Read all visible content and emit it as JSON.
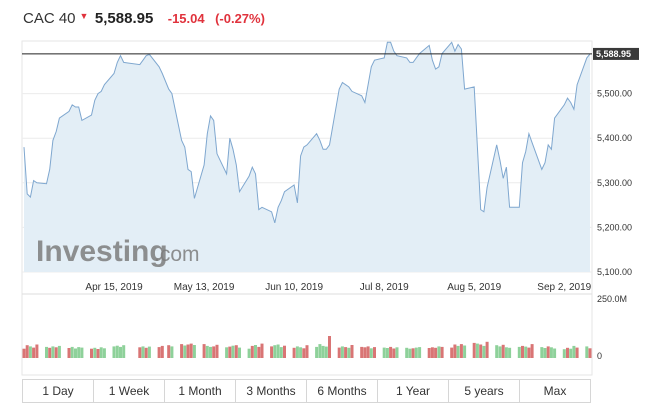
{
  "header": {
    "index_name": "CAC 40",
    "price": "5,588.95",
    "change": "-15.04",
    "change_pct": "(-0.27%)"
  },
  "watermark": {
    "brand": "Investing",
    "suffix": ".com"
  },
  "range_buttons": [
    "1 Day",
    "1 Week",
    "1 Month",
    "3 Months",
    "6 Months",
    "1 Year",
    "5 years",
    "Max"
  ],
  "colors": {
    "line": "#7fa7cf",
    "area": "#e3eef6",
    "up_volume": "#8ed19a",
    "down_volume": "#d97575",
    "negative": "#e0323c",
    "price_tag": "#3a3a3a"
  },
  "chart_data": {
    "type": "area",
    "price_axis": {
      "ticks": [
        "5,100.00",
        "5,200.00",
        "5,300.00",
        "5,400.00",
        "5,500.00"
      ],
      "tick_values": [
        5100,
        5200,
        5300,
        5400,
        5500
      ],
      "range": [
        5100,
        5600
      ],
      "last_price_label": "5,588.95",
      "last_price": 5588.95
    },
    "x_axis": {
      "ticks": [
        "Apr 15, 2019",
        "May 13, 2019",
        "Jun 10, 2019",
        "Jul 8, 2019",
        "Aug 5, 2019",
        "Sep 2, 2019"
      ],
      "tick_dates": [
        "2019-04-15",
        "2019-05-13",
        "2019-06-10",
        "2019-07-08",
        "2019-08-05",
        "2019-09-02"
      ],
      "range": [
        "2019-03-18",
        "2019-09-10"
      ]
    },
    "series": [
      {
        "points": [
          [
            "2019-03-18",
            5380
          ],
          [
            "2019-03-19",
            5275
          ],
          [
            "2019-03-20",
            5268
          ],
          [
            "2019-03-21",
            5305
          ],
          [
            "2019-03-22",
            5300
          ],
          [
            "2019-03-25",
            5298
          ],
          [
            "2019-03-26",
            5330
          ],
          [
            "2019-03-27",
            5395
          ],
          [
            "2019-03-28",
            5415
          ],
          [
            "2019-03-29",
            5445
          ],
          [
            "2019-04-01",
            5460
          ],
          [
            "2019-04-02",
            5475
          ],
          [
            "2019-04-03",
            5470
          ],
          [
            "2019-04-04",
            5470
          ],
          [
            "2019-04-05",
            5440
          ],
          [
            "2019-04-08",
            5452
          ],
          [
            "2019-04-09",
            5485
          ],
          [
            "2019-04-10",
            5500
          ],
          [
            "2019-04-11",
            5505
          ],
          [
            "2019-04-12",
            5520
          ],
          [
            "2019-04-15",
            5545
          ],
          [
            "2019-04-16",
            5570
          ],
          [
            "2019-04-17",
            5585
          ],
          [
            "2019-04-18",
            5570
          ],
          [
            "2019-04-23",
            5565
          ],
          [
            "2019-04-24",
            5575
          ],
          [
            "2019-04-25",
            5585
          ],
          [
            "2019-04-26",
            5588
          ],
          [
            "2019-04-29",
            5560
          ],
          [
            "2019-04-30",
            5545
          ],
          [
            "2019-05-02",
            5510
          ],
          [
            "2019-05-03",
            5500
          ],
          [
            "2019-05-06",
            5395
          ],
          [
            "2019-05-07",
            5380
          ],
          [
            "2019-05-08",
            5330
          ],
          [
            "2019-05-09",
            5325
          ],
          [
            "2019-05-10",
            5265
          ],
          [
            "2019-05-13",
            5340
          ],
          [
            "2019-05-14",
            5410
          ],
          [
            "2019-05-15",
            5450
          ],
          [
            "2019-05-16",
            5440
          ],
          [
            "2019-05-17",
            5365
          ],
          [
            "2019-05-20",
            5320
          ],
          [
            "2019-05-21",
            5400
          ],
          [
            "2019-05-22",
            5375
          ],
          [
            "2019-05-23",
            5340
          ],
          [
            "2019-05-24",
            5280
          ],
          [
            "2019-05-27",
            5315
          ],
          [
            "2019-05-28",
            5335
          ],
          [
            "2019-05-29",
            5320
          ],
          [
            "2019-05-30",
            5240
          ],
          [
            "2019-05-31",
            5245
          ],
          [
            "2019-06-03",
            5235
          ],
          [
            "2019-06-04",
            5210
          ],
          [
            "2019-06-05",
            5245
          ],
          [
            "2019-06-06",
            5260
          ],
          [
            "2019-06-07",
            5280
          ],
          [
            "2019-06-10",
            5295
          ],
          [
            "2019-06-11",
            5255
          ],
          [
            "2019-06-12",
            5360
          ],
          [
            "2019-06-13",
            5380
          ],
          [
            "2019-06-14",
            5385
          ],
          [
            "2019-06-17",
            5410
          ],
          [
            "2019-06-18",
            5395
          ],
          [
            "2019-06-19",
            5375
          ],
          [
            "2019-06-20",
            5375
          ],
          [
            "2019-06-21",
            5385
          ],
          [
            "2019-06-24",
            5510
          ],
          [
            "2019-06-25",
            5525
          ],
          [
            "2019-06-26",
            5520
          ],
          [
            "2019-06-27",
            5515
          ],
          [
            "2019-06-28",
            5505
          ],
          [
            "2019-07-01",
            5495
          ],
          [
            "2019-07-02",
            5480
          ],
          [
            "2019-07-03",
            5520
          ],
          [
            "2019-07-04",
            5560
          ],
          [
            "2019-07-05",
            5575
          ],
          [
            "2019-07-08",
            5580
          ],
          [
            "2019-07-09",
            5615
          ],
          [
            "2019-07-10",
            5615
          ],
          [
            "2019-07-11",
            5595
          ],
          [
            "2019-07-12",
            5585
          ],
          [
            "2019-07-15",
            5580
          ],
          [
            "2019-07-16",
            5570
          ],
          [
            "2019-07-17",
            5570
          ],
          [
            "2019-07-18",
            5580
          ],
          [
            "2019-07-19",
            5590
          ],
          [
            "2019-07-22",
            5608
          ],
          [
            "2019-07-23",
            5575
          ],
          [
            "2019-07-24",
            5555
          ],
          [
            "2019-07-25",
            5560
          ],
          [
            "2019-07-26",
            5590
          ],
          [
            "2019-07-29",
            5615
          ],
          [
            "2019-07-30",
            5595
          ],
          [
            "2019-07-31",
            5610
          ],
          [
            "2019-08-01",
            5600
          ],
          [
            "2019-08-02",
            5510
          ],
          [
            "2019-08-05",
            5515
          ],
          [
            "2019-08-06",
            5380
          ],
          [
            "2019-08-07",
            5240
          ],
          [
            "2019-08-08",
            5235
          ],
          [
            "2019-08-09",
            5290
          ],
          [
            "2019-08-12",
            5385
          ],
          [
            "2019-08-13",
            5350
          ],
          [
            "2019-08-14",
            5310
          ],
          [
            "2019-08-15",
            5335
          ],
          [
            "2019-08-16",
            5245
          ],
          [
            "2019-08-19",
            5245
          ],
          [
            "2019-08-20",
            5345
          ],
          [
            "2019-08-21",
            5370
          ],
          [
            "2019-08-22",
            5410
          ],
          [
            "2019-08-23",
            5390
          ],
          [
            "2019-08-26",
            5330
          ],
          [
            "2019-08-27",
            5345
          ],
          [
            "2019-08-28",
            5385
          ],
          [
            "2019-08-29",
            5375
          ],
          [
            "2019-08-30",
            5445
          ],
          [
            "2019-09-02",
            5475
          ],
          [
            "2019-09-03",
            5490
          ],
          [
            "2019-09-04",
            5480
          ],
          [
            "2019-09-05",
            5465
          ],
          [
            "2019-09-06",
            5520
          ],
          [
            "2019-09-09",
            5580
          ],
          [
            "2019-09-10",
            5589
          ]
        ]
      }
    ],
    "volume": {
      "max_label": "250.0M",
      "zero_label": "0",
      "max": 250,
      "unit": "M",
      "bars": [
        [
          "2019-03-18",
          40,
          "down"
        ],
        [
          "2019-03-19",
          55,
          "down"
        ],
        [
          "2019-03-20",
          50,
          "up"
        ],
        [
          "2019-03-21",
          45,
          "down"
        ],
        [
          "2019-03-22",
          58,
          "down"
        ],
        [
          "2019-03-25",
          48,
          "up"
        ],
        [
          "2019-03-26",
          44,
          "down"
        ],
        [
          "2019-03-27",
          50,
          "up"
        ],
        [
          "2019-03-28",
          46,
          "down"
        ],
        [
          "2019-03-29",
          52,
          "up"
        ],
        [
          "2019-04-01",
          43,
          "down"
        ],
        [
          "2019-04-02",
          48,
          "up"
        ],
        [
          "2019-04-03",
          41,
          "up"
        ],
        [
          "2019-04-04",
          47,
          "up"
        ],
        [
          "2019-04-05",
          45,
          "up"
        ],
        [
          "2019-04-08",
          40,
          "down"
        ],
        [
          "2019-04-09",
          44,
          "up"
        ],
        [
          "2019-04-10",
          39,
          "down"
        ],
        [
          "2019-04-11",
          46,
          "up"
        ],
        [
          "2019-04-12",
          42,
          "up"
        ],
        [
          "2019-04-15",
          50,
          "up"
        ],
        [
          "2019-04-16",
          53,
          "up"
        ],
        [
          "2019-04-17",
          48,
          "up"
        ],
        [
          "2019-04-18",
          55,
          "up"
        ],
        [
          "2019-04-23",
          46,
          "down"
        ],
        [
          "2019-04-24",
          50,
          "up"
        ],
        [
          "2019-04-25",
          44,
          "down"
        ],
        [
          "2019-04-26",
          49,
          "up"
        ],
        [
          "2019-04-29",
          47,
          "down"
        ],
        [
          "2019-04-30",
          52,
          "down"
        ],
        [
          "2019-05-02",
          55,
          "down"
        ],
        [
          "2019-05-03",
          50,
          "up"
        ],
        [
          "2019-05-06",
          60,
          "down"
        ],
        [
          "2019-05-07",
          54,
          "up"
        ],
        [
          "2019-05-08",
          58,
          "down"
        ],
        [
          "2019-05-09",
          62,
          "down"
        ],
        [
          "2019-05-10",
          56,
          "up"
        ],
        [
          "2019-05-13",
          60,
          "down"
        ],
        [
          "2019-05-14",
          52,
          "up"
        ],
        [
          "2019-05-15",
          48,
          "up"
        ],
        [
          "2019-05-16",
          50,
          "down"
        ],
        [
          "2019-05-17",
          57,
          "down"
        ],
        [
          "2019-05-20",
          46,
          "up"
        ],
        [
          "2019-05-21",
          49,
          "down"
        ],
        [
          "2019-05-22",
          53,
          "up"
        ],
        [
          "2019-05-23",
          55,
          "down"
        ],
        [
          "2019-05-24",
          45,
          "up"
        ],
        [
          "2019-05-27",
          40,
          "up"
        ],
        [
          "2019-05-28",
          52,
          "down"
        ],
        [
          "2019-05-29",
          56,
          "up"
        ],
        [
          "2019-05-30",
          48,
          "down"
        ],
        [
          "2019-05-31",
          62,
          "down"
        ],
        [
          "2019-06-03",
          50,
          "down"
        ],
        [
          "2019-06-04",
          55,
          "up"
        ],
        [
          "2019-06-05",
          58,
          "up"
        ],
        [
          "2019-06-06",
          47,
          "up"
        ],
        [
          "2019-06-07",
          53,
          "down"
        ],
        [
          "2019-06-10",
          44,
          "down"
        ],
        [
          "2019-06-11",
          50,
          "up"
        ],
        [
          "2019-06-12",
          46,
          "up"
        ],
        [
          "2019-06-13",
          42,
          "down"
        ],
        [
          "2019-06-14",
          55,
          "down"
        ],
        [
          "2019-06-17",
          48,
          "up"
        ],
        [
          "2019-06-18",
          60,
          "up"
        ],
        [
          "2019-06-19",
          52,
          "up"
        ],
        [
          "2019-06-20",
          49,
          "up"
        ],
        [
          "2019-06-21",
          95,
          "down"
        ],
        [
          "2019-06-24",
          45,
          "down"
        ],
        [
          "2019-06-25",
          50,
          "up"
        ],
        [
          "2019-06-26",
          47,
          "down"
        ],
        [
          "2019-06-27",
          44,
          "up"
        ],
        [
          "2019-06-28",
          56,
          "down"
        ],
        [
          "2019-07-01",
          48,
          "down"
        ],
        [
          "2019-07-02",
          46,
          "down"
        ],
        [
          "2019-07-03",
          50,
          "down"
        ],
        [
          "2019-07-04",
          42,
          "up"
        ],
        [
          "2019-07-05",
          47,
          "down"
        ],
        [
          "2019-07-08",
          45,
          "up"
        ],
        [
          "2019-07-09",
          43,
          "up"
        ],
        [
          "2019-07-10",
          48,
          "down"
        ],
        [
          "2019-07-11",
          41,
          "down"
        ],
        [
          "2019-07-12",
          46,
          "up"
        ],
        [
          "2019-07-15",
          44,
          "up"
        ],
        [
          "2019-07-16",
          40,
          "up"
        ],
        [
          "2019-07-17",
          42,
          "down"
        ],
        [
          "2019-07-18",
          45,
          "up"
        ],
        [
          "2019-07-19",
          47,
          "up"
        ],
        [
          "2019-07-22",
          43,
          "down"
        ],
        [
          "2019-07-23",
          46,
          "down"
        ],
        [
          "2019-07-24",
          44,
          "down"
        ],
        [
          "2019-07-25",
          50,
          "up"
        ],
        [
          "2019-07-26",
          48,
          "down"
        ],
        [
          "2019-07-29",
          45,
          "down"
        ],
        [
          "2019-07-30",
          58,
          "down"
        ],
        [
          "2019-07-31",
          52,
          "up"
        ],
        [
          "2019-08-01",
          60,
          "down"
        ],
        [
          "2019-08-02",
          54,
          "up"
        ],
        [
          "2019-08-05",
          65,
          "down"
        ],
        [
          "2019-08-06",
          62,
          "up"
        ],
        [
          "2019-08-07",
          58,
          "down"
        ],
        [
          "2019-08-08",
          52,
          "up"
        ],
        [
          "2019-08-09",
          70,
          "down"
        ],
        [
          "2019-08-12",
          55,
          "up"
        ],
        [
          "2019-08-13",
          50,
          "up"
        ],
        [
          "2019-08-14",
          57,
          "down"
        ],
        [
          "2019-08-15",
          46,
          "up"
        ],
        [
          "2019-08-16",
          44,
          "up"
        ],
        [
          "2019-08-19",
          48,
          "up"
        ],
        [
          "2019-08-20",
          52,
          "down"
        ],
        [
          "2019-08-21",
          49,
          "up"
        ],
        [
          "2019-08-22",
          45,
          "down"
        ],
        [
          "2019-08-23",
          60,
          "down"
        ],
        [
          "2019-08-26",
          47,
          "up"
        ],
        [
          "2019-08-27",
          43,
          "up"
        ],
        [
          "2019-08-28",
          50,
          "down"
        ],
        [
          "2019-08-29",
          46,
          "up"
        ],
        [
          "2019-08-30",
          41,
          "up"
        ],
        [
          "2019-09-02",
          38,
          "up"
        ],
        [
          "2019-09-03",
          44,
          "down"
        ],
        [
          "2019-09-04",
          40,
          "up"
        ],
        [
          "2019-09-05",
          52,
          "up"
        ],
        [
          "2019-09-06",
          45,
          "down"
        ],
        [
          "2019-09-09",
          50,
          "up"
        ],
        [
          "2019-09-10",
          42,
          "down"
        ]
      ]
    }
  }
}
